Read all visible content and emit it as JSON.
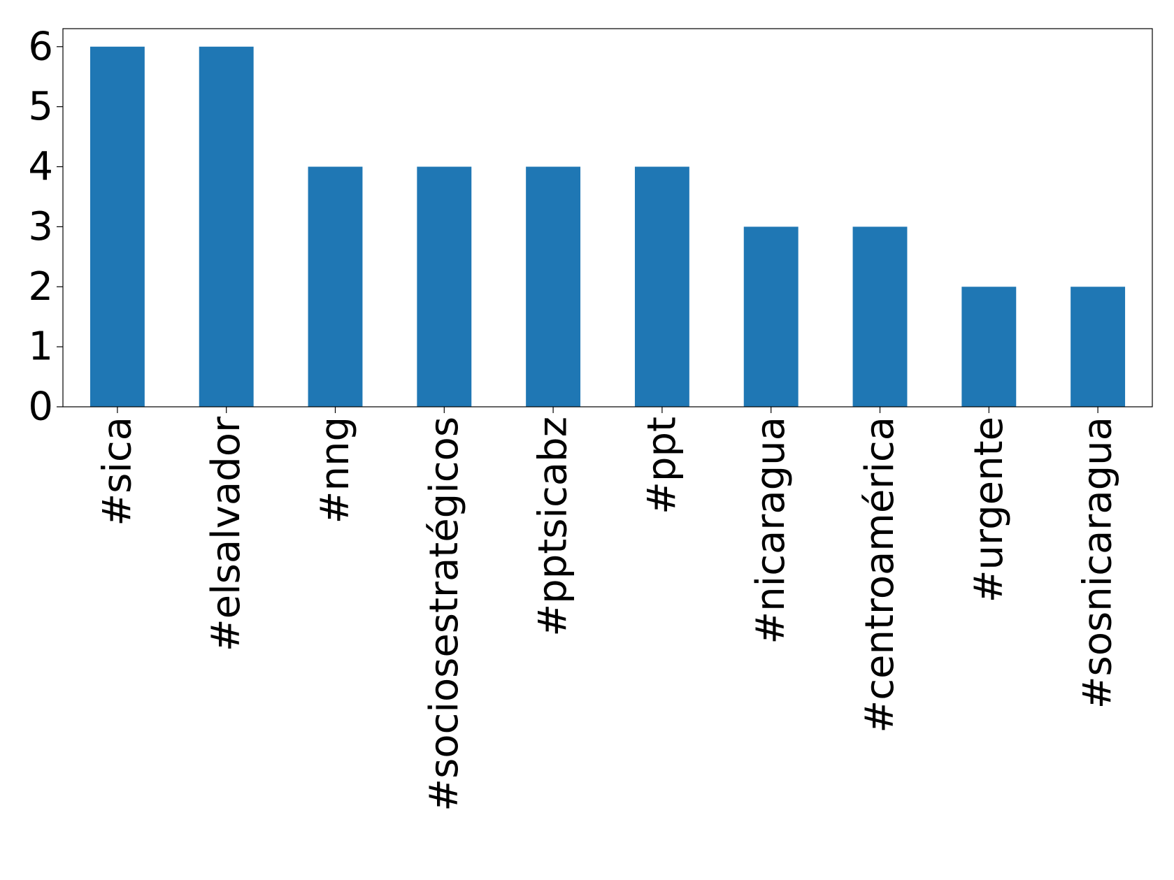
{
  "chart_data": {
    "type": "bar",
    "categories": [
      "#sica",
      "#elsalvador",
      "#nng",
      "#sociosestratégicos",
      "#pptsicabz",
      "#ppt",
      "#nicaragua",
      "#centroamérica",
      "#urgente",
      "#sosnicaragua"
    ],
    "values": [
      6,
      6,
      4,
      4,
      4,
      4,
      3,
      3,
      2,
      2
    ],
    "color": "#1f77b4",
    "ylim": [
      0,
      6.3
    ],
    "yticks": [
      0,
      1,
      2,
      3,
      4,
      5,
      6
    ],
    "grid": false
  }
}
